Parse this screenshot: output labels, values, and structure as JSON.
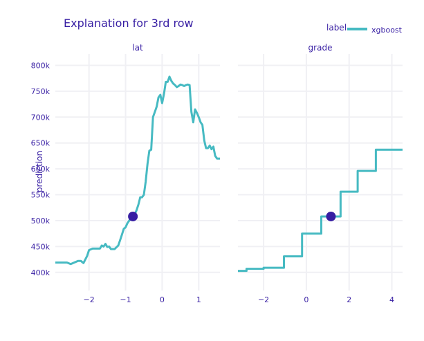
{
  "title": "Explanation for 3rd row",
  "y_axis_label": "prediction",
  "legend": {
    "title": "label",
    "series_name": "xgboost"
  },
  "colors": {
    "line": "#46bac2",
    "point": "#371ea3",
    "text": "#371ea3",
    "grid": "#f0f0f4"
  },
  "chart_data": [
    {
      "type": "line",
      "panel_title": "lat",
      "ylim": [
        365000,
        822000
      ],
      "xlim": [
        -2.92,
        1.58
      ],
      "yticks": [
        400000,
        450000,
        500000,
        550000,
        600000,
        650000,
        700000,
        750000,
        800000
      ],
      "ytick_labels": [
        "400k",
        "450k",
        "500k",
        "550k",
        "600k",
        "650k",
        "700k",
        "750k",
        "800k"
      ],
      "xticks": [
        -2,
        -1,
        0,
        1
      ],
      "xtick_labels": [
        "−2",
        "−1",
        "0",
        "1"
      ],
      "series": [
        {
          "name": "xgboost",
          "x": [
            -2.92,
            -2.6,
            -2.5,
            -2.3,
            -2.22,
            -2.15,
            -2.05,
            -2.0,
            -1.9,
            -1.7,
            -1.65,
            -1.6,
            -1.55,
            -1.5,
            -1.45,
            -1.4,
            -1.35,
            -1.3,
            -1.2,
            -1.15,
            -1.1,
            -1.05,
            -1.0,
            -0.95,
            -0.9,
            -0.85,
            -0.8,
            -0.75,
            -0.7,
            -0.65,
            -0.6,
            -0.55,
            -0.5,
            -0.45,
            -0.4,
            -0.35,
            -0.3,
            -0.25,
            -0.2,
            -0.15,
            -0.1,
            -0.05,
            0.0,
            0.05,
            0.1,
            0.15,
            0.2,
            0.25,
            0.3,
            0.35,
            0.4,
            0.45,
            0.5,
            0.55,
            0.6,
            0.65,
            0.7,
            0.75,
            0.8,
            0.85,
            0.9,
            0.95,
            1.0,
            1.05,
            1.1,
            1.15,
            1.2,
            1.25,
            1.3,
            1.35,
            1.4,
            1.45,
            1.5,
            1.55,
            1.58
          ],
          "y": [
            419000,
            419000,
            416000,
            422000,
            422000,
            418000,
            432000,
            443000,
            446000,
            446000,
            452000,
            450000,
            455000,
            449000,
            450000,
            445000,
            445000,
            445000,
            452000,
            462000,
            473000,
            484000,
            487000,
            495000,
            500000,
            505000,
            508000,
            512000,
            520000,
            531000,
            545000,
            545000,
            550000,
            575000,
            610000,
            635000,
            637000,
            700000,
            710000,
            720000,
            738000,
            743000,
            727000,
            745000,
            768000,
            768000,
            778000,
            770000,
            765000,
            762000,
            758000,
            760000,
            763000,
            762000,
            760000,
            762000,
            763000,
            762000,
            710000,
            690000,
            715000,
            708000,
            700000,
            690000,
            685000,
            655000,
            640000,
            640000,
            645000,
            638000,
            643000,
            625000,
            620000,
            620000,
            620000
          ]
        }
      ],
      "point": {
        "x": -0.8,
        "y": 508000
      }
    },
    {
      "type": "line",
      "panel_title": "grade",
      "ylim": [
        365000,
        822000
      ],
      "xlim": [
        -3.2,
        4.5
      ],
      "xticks": [
        -2,
        0,
        2,
        4
      ],
      "xtick_labels": [
        "−2",
        "0",
        "2",
        "4"
      ],
      "series": [
        {
          "name": "xgboost",
          "x": [
            -3.2,
            -2.8,
            -2.8,
            -2.0,
            -2.0,
            -1.05,
            -1.05,
            -0.2,
            -0.2,
            0.7,
            0.7,
            1.6,
            1.6,
            2.4,
            2.4,
            3.25,
            3.25,
            4.5
          ],
          "y": [
            403000,
            403000,
            407000,
            407000,
            409000,
            409000,
            431000,
            431000,
            475000,
            475000,
            508000,
            508000,
            556000,
            556000,
            596000,
            596000,
            637000,
            637000
          ]
        }
      ],
      "point": {
        "x": 1.15,
        "y": 508000
      }
    }
  ]
}
